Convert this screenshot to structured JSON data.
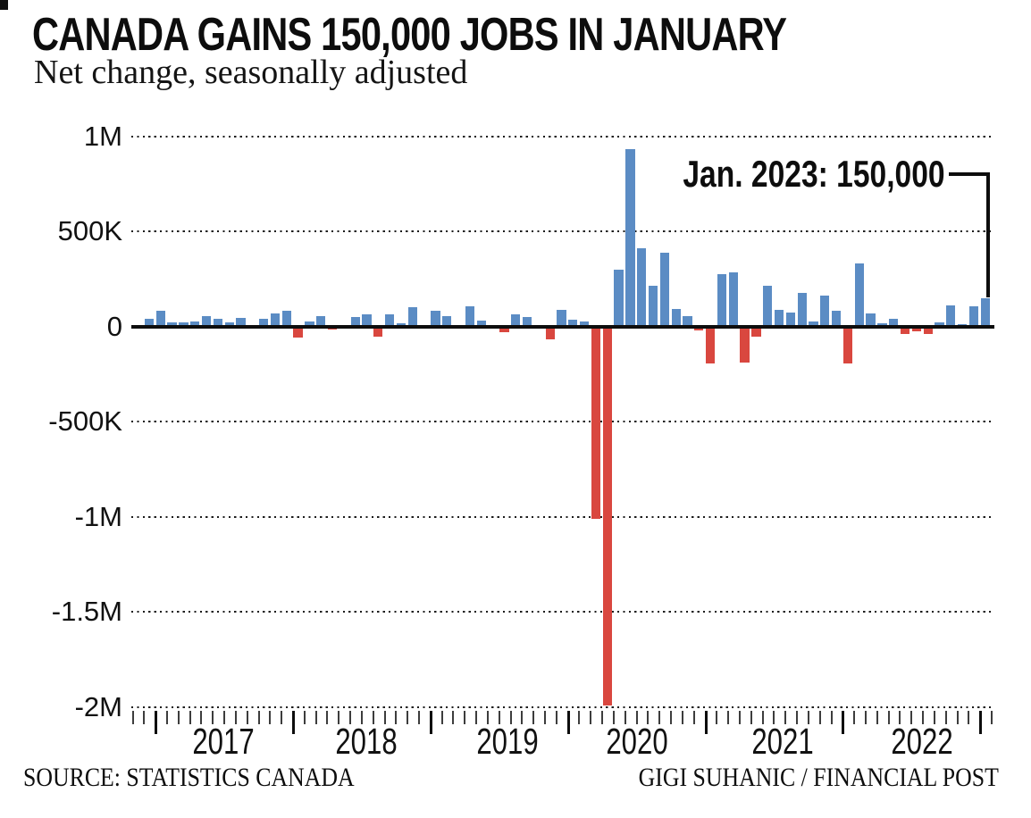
{
  "page": {
    "background": "#ffffff",
    "text_color": "#0d0d0d"
  },
  "header": {
    "title": "CANADA GAINS 150,000 JOBS IN JANUARY",
    "subtitle": "Net change, seasonally adjusted"
  },
  "annotation": {
    "label": "Jan. 2023: 150,000"
  },
  "footer": {
    "source": "SOURCE: STATISTICS CANADA",
    "credit": "GIGI SUHANIC / FINANCIAL POST"
  },
  "chart_data": {
    "type": "bar",
    "title": "CANADA GAINS 150,000 JOBS IN JANUARY",
    "subtitle": "Net change, seasonally adjusted",
    "description": "Monthly net change in Canadian employment, seasonally adjusted",
    "unit": "jobs, thousands",
    "x_start_month": "Dec 2016",
    "x_end_month": "Jan 2023",
    "x_year_labels": [
      "2017",
      "2018",
      "2019",
      "2020",
      "2021",
      "2022"
    ],
    "y_ticks": [
      {
        "label": "1M",
        "value": 1000
      },
      {
        "label": "500K",
        "value": 500
      },
      {
        "label": "0",
        "value": 0
      },
      {
        "label": "-500K",
        "value": -500
      },
      {
        "label": "-1M",
        "value": -1000
      },
      {
        "label": "-1.5M",
        "value": -1500
      },
      {
        "label": "-2M",
        "value": -2000
      }
    ],
    "ylim": [
      -2000,
      1000
    ],
    "values_thousands": [
      40,
      80,
      19,
      23,
      27,
      55,
      39,
      23,
      45,
      3,
      42,
      70,
      82,
      -60,
      28,
      55,
      -15,
      -9,
      47,
      65,
      -55,
      63,
      15,
      100,
      5,
      80,
      55,
      -13,
      105,
      32,
      -3,
      -32,
      62,
      48,
      -2,
      -70,
      85,
      35,
      28,
      -1011,
      -1994,
      300,
      930,
      412,
      215,
      385,
      90,
      55,
      -21,
      -195,
      275,
      285,
      -192,
      -55,
      215,
      85,
      75,
      178,
      28,
      163,
      80,
      -197,
      333,
      70,
      18,
      42,
      -39,
      -28,
      -39,
      23,
      108,
      11,
      105,
      150
    ],
    "highlight": {
      "month": "Jan 2023",
      "value_thousands": 150,
      "annotation": "Jan. 2023: 150,000"
    },
    "colors": {
      "positive": "#5b8cc4",
      "negative": "#d9473f",
      "axis": "#0d0d0d"
    },
    "gridlines": "dotted horizontal line at each labeled y tick; solid black line at zero",
    "legend": "none"
  }
}
